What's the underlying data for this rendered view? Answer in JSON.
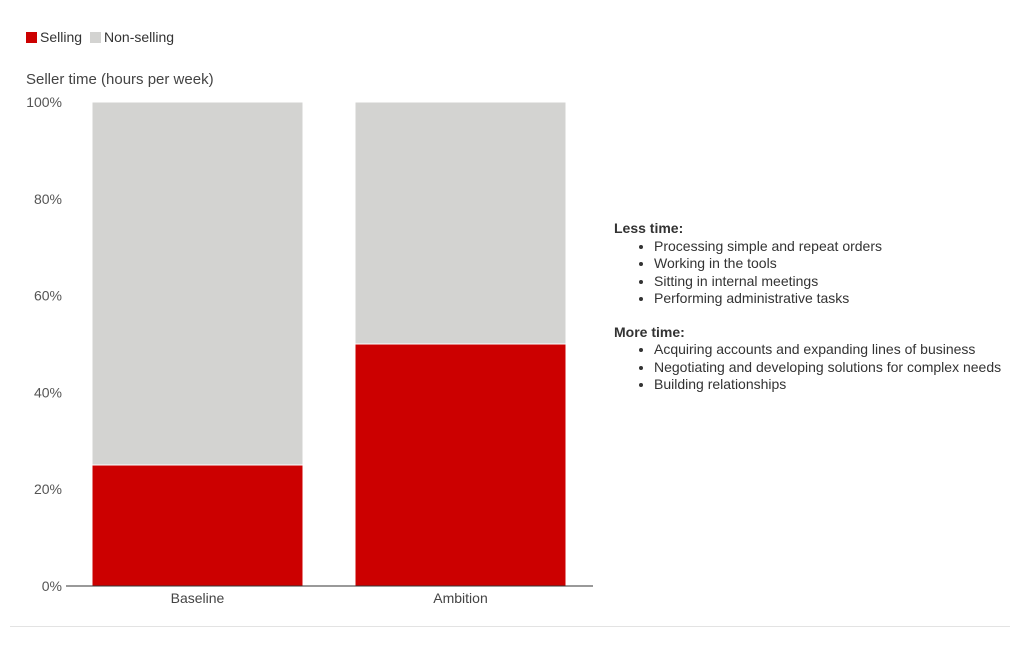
{
  "legend": [
    {
      "label": "Selling",
      "color": "#cc0000"
    },
    {
      "label": "Non-selling",
      "color": "#d3d3d1"
    }
  ],
  "chart_data": {
    "type": "bar",
    "stacked": true,
    "ylabel": "Seller time (hours per week)",
    "categories": [
      "Baseline",
      "Ambition"
    ],
    "series": [
      {
        "name": "Selling",
        "color": "#cc0000",
        "values": [
          25,
          50
        ]
      },
      {
        "name": "Non-selling",
        "color": "#d3d3d1",
        "values": [
          75,
          50
        ]
      }
    ],
    "yticks": [
      "0%",
      "20%",
      "40%",
      "60%",
      "80%",
      "100%"
    ],
    "ylim": [
      0,
      100
    ],
    "grid": false,
    "legend_position": "top-left"
  },
  "notes": {
    "less_title": "Less time:",
    "less_items": [
      "Processing simple and repeat orders",
      "Working in the tools",
      "Sitting in internal meetings",
      "Performing administrative tasks"
    ],
    "more_title": "More time:",
    "more_items": [
      "Acquiring accounts and expanding lines of business",
      "Negotiating and developing solutions for complex needs",
      "Building relationships"
    ]
  }
}
